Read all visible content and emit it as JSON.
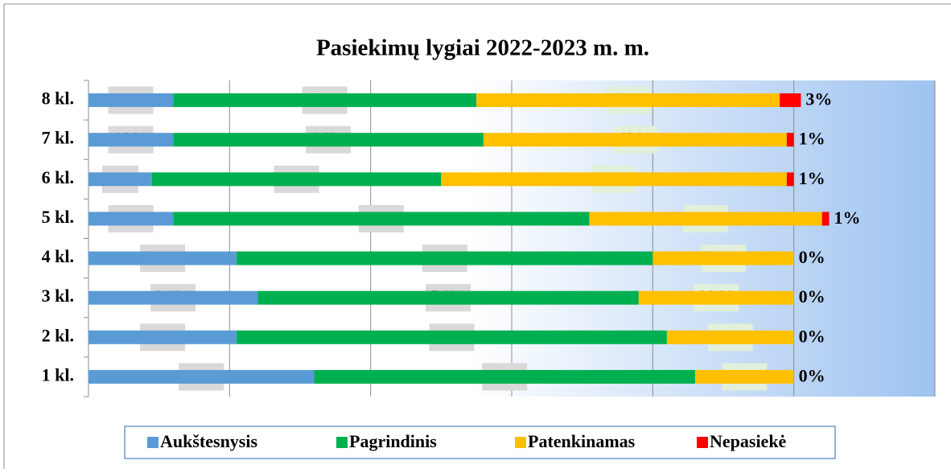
{
  "chart_data": {
    "type": "stacked-barh",
    "title": "Pasiekimų lygiai 2022-2023 m. m.",
    "categories": [
      "8 kl.",
      "7 kl.",
      "6 kl.",
      "5 kl.",
      "4 kl.",
      "3 kl.",
      "2 kl.",
      "1 kl."
    ],
    "series": [
      {
        "name": "Aukštesnysis",
        "color": "#5b9bd5",
        "values": [
          12,
          12,
          9,
          12,
          21,
          24,
          21,
          32
        ],
        "value_labels": [
          "12%",
          "12%",
          "9%",
          "12%",
          "21%",
          "24%",
          "21%",
          "32%"
        ]
      },
      {
        "name": "Pagrindinis",
        "color": "#00b050",
        "values": [
          43,
          44,
          41,
          59,
          59,
          54,
          61,
          54
        ],
        "value_labels": [
          "43%",
          "44%",
          "41%",
          "59%",
          "59%",
          "54%",
          "61%",
          "54%"
        ]
      },
      {
        "name": "Patenkinamas",
        "color": "#ffc000",
        "values": [
          43,
          43,
          49,
          33,
          20,
          22,
          18,
          14
        ],
        "value_labels": [
          "43%",
          "43%",
          "49%",
          "33%",
          "20%",
          "22%",
          "18%",
          "14%"
        ]
      },
      {
        "name": "Nepasiekė",
        "color": "#ff0000",
        "values": [
          3,
          1,
          1,
          1,
          0,
          0,
          0,
          0
        ],
        "value_labels": [
          "3%",
          "1%",
          "1%",
          "1%",
          "0%",
          "0%",
          "0%",
          "0%"
        ]
      }
    ],
    "xlim": [
      0,
      120
    ],
    "xticks": [
      0,
      20,
      40,
      60,
      80,
      100,
      120
    ],
    "grid": true,
    "legend": "bottom"
  }
}
